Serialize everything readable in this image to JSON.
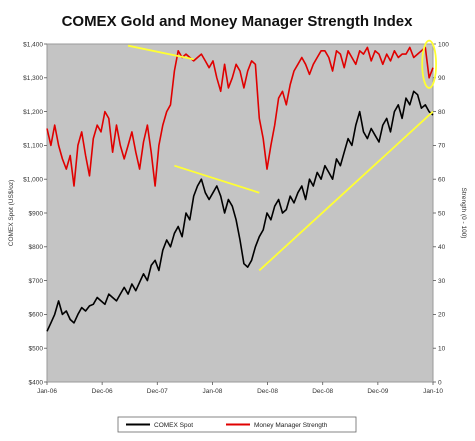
{
  "chart_data": {
    "type": "line",
    "title": "COMEX Gold and Money Manager Strength Index",
    "x_ticks": [
      "Jan-06",
      "Dec-06",
      "Dec-07",
      "Jan-08",
      "Dec-08",
      "Dec-08",
      "Dec-09",
      "Jan-10"
    ],
    "y_left": {
      "label": "COMEX Spot (US$/oz)",
      "lim": [
        400,
        1400
      ],
      "ticks": [
        "$400",
        "$500",
        "$600",
        "$700",
        "$800",
        "$900",
        "$1,000",
        "$1,100",
        "$1,200",
        "$1,300",
        "$1,400"
      ]
    },
    "y_right": {
      "label": "Strength (0 - 100)",
      "lim": [
        0,
        100
      ],
      "ticks": [
        "0",
        "10",
        "20",
        "30",
        "40",
        "50",
        "60",
        "70",
        "80",
        "90",
        "100"
      ]
    },
    "grid": false,
    "legend_placement": "bottom",
    "background": "#c4c4c4",
    "series": [
      {
        "name": "COMEX Spot",
        "axis": "left",
        "color": "#000000",
        "x": [
          0.0,
          0.01,
          0.02,
          0.03,
          0.04,
          0.05,
          0.06,
          0.07,
          0.08,
          0.09,
          0.1,
          0.11,
          0.12,
          0.13,
          0.14,
          0.15,
          0.16,
          0.17,
          0.18,
          0.19,
          0.2,
          0.21,
          0.22,
          0.23,
          0.24,
          0.25,
          0.26,
          0.27,
          0.28,
          0.29,
          0.3,
          0.31,
          0.32,
          0.33,
          0.34,
          0.35,
          0.36,
          0.37,
          0.38,
          0.39,
          0.4,
          0.41,
          0.42,
          0.43,
          0.44,
          0.45,
          0.46,
          0.47,
          0.48,
          0.49,
          0.5,
          0.51,
          0.52,
          0.53,
          0.54,
          0.55,
          0.56,
          0.57,
          0.58,
          0.59,
          0.6,
          0.61,
          0.62,
          0.63,
          0.64,
          0.65,
          0.66,
          0.67,
          0.68,
          0.69,
          0.7,
          0.71,
          0.72,
          0.73,
          0.74,
          0.75,
          0.76,
          0.77,
          0.78,
          0.79,
          0.8,
          0.81,
          0.82,
          0.83,
          0.84,
          0.85,
          0.86,
          0.87,
          0.88,
          0.89,
          0.9,
          0.91,
          0.92,
          0.93,
          0.94,
          0.95,
          0.96,
          0.97,
          0.98,
          0.99,
          1.0
        ],
        "values": [
          550,
          575,
          600,
          640,
          600,
          610,
          585,
          575,
          600,
          620,
          610,
          625,
          630,
          650,
          640,
          630,
          660,
          650,
          640,
          660,
          680,
          660,
          690,
          670,
          695,
          720,
          700,
          745,
          760,
          730,
          790,
          820,
          800,
          840,
          860,
          830,
          900,
          880,
          950,
          980,
          1000,
          960,
          940,
          960,
          980,
          950,
          900,
          940,
          920,
          880,
          820,
          750,
          740,
          760,
          800,
          830,
          850,
          900,
          880,
          920,
          940,
          900,
          910,
          950,
          930,
          960,
          980,
          940,
          1000,
          980,
          1020,
          1000,
          1040,
          1020,
          1000,
          1060,
          1040,
          1080,
          1120,
          1100,
          1160,
          1200,
          1140,
          1120,
          1150,
          1130,
          1110,
          1160,
          1180,
          1140,
          1200,
          1220,
          1180,
          1240,
          1220,
          1260,
          1250,
          1210,
          1220,
          1200,
          1190
        ]
      },
      {
        "name": "Money Manager Strength",
        "axis": "right",
        "color": "#e00000",
        "x": [
          0.0,
          0.01,
          0.02,
          0.03,
          0.04,
          0.05,
          0.06,
          0.07,
          0.08,
          0.09,
          0.1,
          0.11,
          0.12,
          0.13,
          0.14,
          0.15,
          0.16,
          0.17,
          0.18,
          0.19,
          0.2,
          0.21,
          0.22,
          0.23,
          0.24,
          0.25,
          0.26,
          0.27,
          0.28,
          0.29,
          0.3,
          0.31,
          0.32,
          0.33,
          0.34,
          0.35,
          0.36,
          0.37,
          0.38,
          0.39,
          0.4,
          0.41,
          0.42,
          0.43,
          0.44,
          0.45,
          0.46,
          0.47,
          0.48,
          0.49,
          0.5,
          0.51,
          0.52,
          0.53,
          0.54,
          0.55,
          0.56,
          0.57,
          0.58,
          0.59,
          0.6,
          0.61,
          0.62,
          0.63,
          0.64,
          0.65,
          0.66,
          0.67,
          0.68,
          0.69,
          0.7,
          0.71,
          0.72,
          0.73,
          0.74,
          0.75,
          0.76,
          0.77,
          0.78,
          0.79,
          0.8,
          0.81,
          0.82,
          0.83,
          0.84,
          0.85,
          0.86,
          0.87,
          0.88,
          0.89,
          0.9,
          0.91,
          0.92,
          0.93,
          0.94,
          0.95,
          0.96,
          0.97,
          0.98,
          0.99,
          1.0
        ],
        "values": [
          75,
          70,
          76,
          70,
          66,
          63,
          67,
          58,
          70,
          74,
          67,
          61,
          72,
          76,
          74,
          80,
          78,
          68,
          76,
          70,
          66,
          70,
          74,
          68,
          63,
          71,
          76,
          68,
          58,
          70,
          76,
          80,
          82,
          92,
          98,
          96,
          97,
          96,
          95,
          96,
          97,
          95,
          93,
          95,
          90,
          86,
          94,
          87,
          90,
          94,
          92,
          87,
          92,
          95,
          94,
          78,
          72,
          63,
          70,
          76,
          84,
          86,
          82,
          88,
          92,
          94,
          96,
          94,
          91,
          94,
          96,
          98,
          98,
          96,
          92,
          98,
          97,
          93,
          98,
          96,
          94,
          98,
          97,
          99,
          95,
          98,
          97,
          94,
          97,
          95,
          98,
          96,
          97,
          97,
          99,
          96,
          97,
          98,
          99,
          90,
          93
        ]
      }
    ],
    "annotations": [
      {
        "type": "trendline",
        "color": "#ffff33",
        "axis": "left",
        "from": [
          0.21,
          1395
        ],
        "to": [
          0.38,
          1355
        ]
      },
      {
        "type": "trendline",
        "color": "#ffff33",
        "axis": "left",
        "from": [
          0.33,
          1040
        ],
        "to": [
          0.55,
          960
        ]
      },
      {
        "type": "trendline",
        "color": "#ffff33",
        "axis": "left",
        "from": [
          0.55,
          730
        ],
        "to": [
          1.0,
          1200
        ]
      },
      {
        "type": "ellipse",
        "color": "#ffff33",
        "axis": "right",
        "center": [
          0.99,
          94
        ],
        "radius": [
          0.018,
          7
        ]
      }
    ]
  }
}
